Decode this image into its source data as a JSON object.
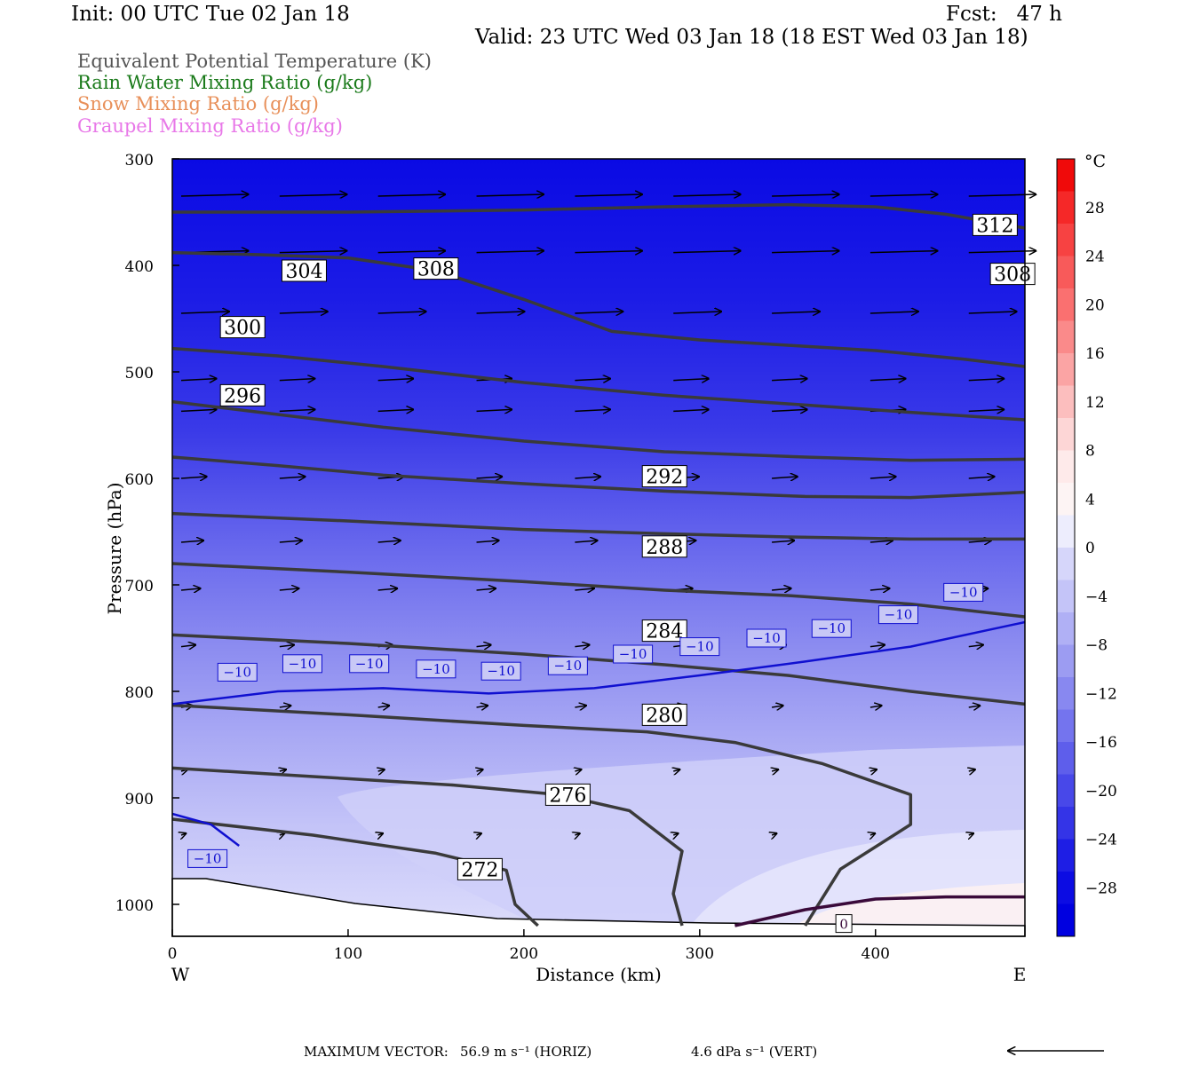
{
  "header": {
    "init": "Init: 00 UTC Tue 02 Jan 18",
    "fcst": "Fcst:   47 h",
    "valid": "Valid: 23 UTC Wed 03 Jan 18 (18 EST Wed 03 Jan 18)"
  },
  "fields": [
    {
      "label": "Equivalent Potential Temperature (K)",
      "color": "#555555"
    },
    {
      "label": "Rain Water Mixing Ratio (g/kg)",
      "color": "#1a7a1a"
    },
    {
      "label": "Snow Mixing Ratio (g/kg)",
      "color": "#e8905a"
    },
    {
      "label": "Graupel Mixing Ratio (g/kg)",
      "color": "#e878e8"
    }
  ],
  "chart_data": {
    "type": "cross-section contour",
    "xlabel": "Distance (km)",
    "ylabel": "Pressure (hPa)",
    "x_range": [
      0,
      485
    ],
    "y_range": [
      300,
      1030
    ],
    "y_scale": "linear, inverted",
    "x_ticks": [
      "0",
      "100",
      "200",
      "300",
      "400"
    ],
    "x_tick_values": [
      0,
      100,
      200,
      300,
      400
    ],
    "y_ticks": [
      "300",
      "400",
      "500",
      "600",
      "700",
      "800",
      "900",
      "1000"
    ],
    "y_tick_values": [
      300,
      400,
      500,
      600,
      700,
      800,
      900,
      1000
    ],
    "left_end_label": "W",
    "right_end_label": "E",
    "theta_e_contours": [
      {
        "label": "312",
        "x": [
          0,
          100,
          200,
          280,
          350,
          400,
          440,
          485
        ],
        "p": [
          350,
          350,
          348,
          345,
          343,
          345,
          352,
          365
        ],
        "labels_at": [
          [
            468,
            362
          ]
        ]
      },
      {
        "label": "308",
        "x": [
          0,
          50,
          100,
          150,
          200,
          250,
          300,
          350,
          400,
          450,
          485
        ],
        "p": [
          388,
          390,
          393,
          405,
          432,
          462,
          470,
          475,
          480,
          488,
          495
        ],
        "labels_at": [
          [
            150,
            403
          ],
          [
            478,
            408
          ]
        ]
      },
      {
        "label": "304",
        "x": [
          0,
          60,
          120,
          200,
          280,
          350,
          420,
          485
        ],
        "p": [
          478,
          485,
          495,
          510,
          522,
          530,
          538,
          545
        ],
        "labels_at": [
          [
            75,
            405
          ]
        ]
      },
      {
        "label": "300",
        "x": [
          0,
          60,
          120,
          200,
          280,
          360,
          420,
          485
        ],
        "p": [
          528,
          540,
          552,
          565,
          575,
          580,
          583,
          582
        ],
        "labels_at": [
          [
            40,
            458
          ]
        ]
      },
      {
        "label": "296",
        "x": [
          0,
          60,
          120,
          200,
          280,
          360,
          420,
          485
        ],
        "p": [
          580,
          588,
          597,
          605,
          612,
          617,
          618,
          613
        ],
        "labels_at": [
          [
            40,
            522
          ]
        ]
      },
      {
        "label": "292",
        "x": [
          0,
          100,
          200,
          280,
          350,
          420,
          485
        ],
        "p": [
          633,
          640,
          648,
          652,
          655,
          657,
          657
        ],
        "labels_at": [
          [
            280,
            598
          ]
        ]
      },
      {
        "label": "288",
        "x": [
          0,
          100,
          200,
          280,
          350,
          420,
          485
        ],
        "p": [
          680,
          688,
          697,
          705,
          710,
          718,
          730
        ],
        "labels_at": [
          [
            280,
            664
          ]
        ]
      },
      {
        "label": "284",
        "x": [
          0,
          100,
          200,
          280,
          350,
          420,
          485
        ],
        "p": [
          747,
          755,
          765,
          775,
          785,
          800,
          812
        ],
        "labels_at": [
          [
            280,
            743
          ]
        ]
      },
      {
        "label": "280",
        "x": [
          0,
          100,
          200,
          270,
          320,
          370,
          420,
          420,
          380,
          360
        ],
        "p": [
          813,
          822,
          832,
          838,
          848,
          868,
          897,
          925,
          967,
          1020
        ],
        "labels_at": [
          [
            280,
            822
          ]
        ]
      },
      {
        "label": "276",
        "x": [
          0,
          80,
          160,
          220,
          260,
          290,
          285,
          290
        ],
        "p": [
          872,
          880,
          888,
          897,
          912,
          950,
          990,
          1020
        ],
        "labels_at": [
          [
            225,
            897
          ]
        ]
      },
      {
        "label": "272",
        "x": [
          0,
          80,
          150,
          190,
          195,
          208
        ],
        "p": [
          920,
          935,
          952,
          968,
          1000,
          1020
        ],
        "labels_at": [
          [
            175,
            967
          ]
        ]
      },
      {
        "label": "0",
        "x": [
          320,
          360,
          400,
          440,
          485
        ],
        "p": [
          1020,
          1005,
          995,
          993,
          993
        ],
        "labels_at": [
          [
            382,
            1018
          ]
        ]
      }
    ],
    "temperature_contours": [
      {
        "label": "−10",
        "x": [
          0,
          60,
          120,
          180,
          240,
          300,
          360,
          420,
          485
        ],
        "p": [
          812,
          800,
          797,
          802,
          797,
          785,
          772,
          758,
          735
        ],
        "labels_at": [
          [
            37,
            782
          ],
          [
            74,
            774
          ],
          [
            112,
            774
          ],
          [
            150,
            779
          ],
          [
            187,
            781
          ],
          [
            225,
            776
          ],
          [
            262,
            765
          ],
          [
            300,
            758
          ],
          [
            338,
            750
          ],
          [
            375,
            741
          ],
          [
            413,
            728
          ],
          [
            450,
            707
          ]
        ]
      },
      {
        "label": "−10",
        "x": [
          0,
          22,
          38
        ],
        "p": [
          915,
          925,
          945
        ],
        "labels_at": [
          [
            20,
            957
          ]
        ]
      }
    ],
    "colorbar": {
      "unit": "°C",
      "labels": [
        "28",
        "24",
        "20",
        "16",
        "12",
        "8",
        "4",
        "0",
        "−4",
        "−8",
        "−12",
        "−16",
        "−20",
        "−24",
        "−28"
      ],
      "colors": [
        "#f00a0a",
        "#f52828",
        "#f74242",
        "#f85a5a",
        "#fa7070",
        "#fa8a8a",
        "#fba4a4",
        "#fcbebe",
        "#fdd6d6",
        "#feeaea",
        "#fdf4f4",
        "#ededfd",
        "#d6d6fa",
        "#c4c4f8",
        "#b0b0f5",
        "#9c9cf2",
        "#8888f0",
        "#7474ee",
        "#5e5eeb",
        "#4848e9",
        "#3434e7",
        "#1e1ee5",
        "#0c0ce3",
        "#0000e0"
      ]
    },
    "max_vector": {
      "label": "MAXIMUM VECTOR:",
      "horiz": "56.9 m s⁻¹ (HORIZ)",
      "vert": "4.6 dPa s⁻¹ (VERT)"
    }
  }
}
